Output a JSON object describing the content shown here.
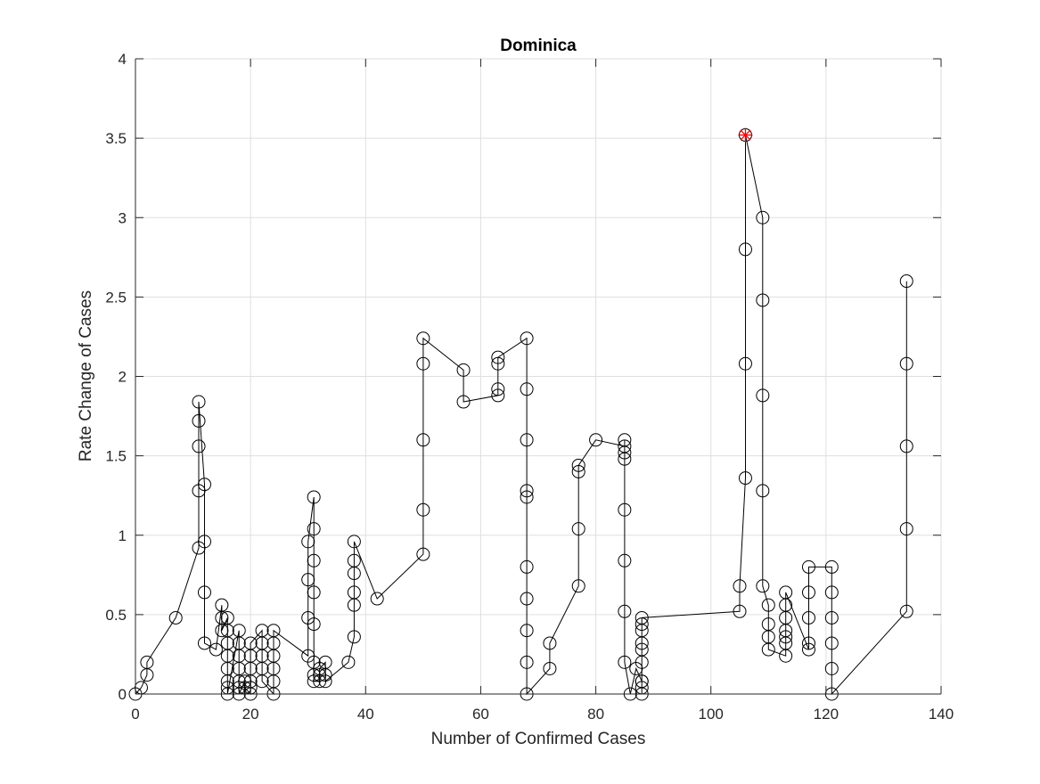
{
  "chart_data": {
    "type": "line",
    "title": "Dominica",
    "xlabel": "Number of Confirmed Cases",
    "ylabel": "Rate Change of Cases",
    "xlim": [
      0,
      140
    ],
    "ylim": [
      0,
      4
    ],
    "xticks": [
      0,
      20,
      40,
      60,
      80,
      100,
      120,
      140
    ],
    "yticks": [
      0,
      0.5,
      1,
      1.5,
      2,
      2.5,
      3,
      3.5,
      4
    ],
    "xtick_labels": [
      "0",
      "20",
      "40",
      "60",
      "80",
      "100",
      "120",
      "140"
    ],
    "ytick_labels": [
      "0",
      "0.5",
      "1",
      "1.5",
      "2",
      "2.5",
      "3",
      "3.5",
      "4"
    ],
    "grid": true,
    "marker": "circle",
    "line_color": "#000000",
    "highlight_color": "#ff0000",
    "series": [
      {
        "x": [
          0,
          1,
          2,
          2,
          7,
          11,
          11,
          11,
          11,
          11,
          12,
          12,
          12,
          12,
          14,
          15,
          15,
          15,
          16,
          16,
          16,
          16,
          16,
          16,
          16,
          16,
          18,
          18,
          18,
          18,
          18,
          18,
          18,
          19,
          19,
          20,
          20,
          20,
          20,
          20,
          20,
          22,
          22,
          22,
          22,
          22,
          24,
          24,
          24,
          24,
          24,
          24,
          30,
          30,
          30,
          30,
          31,
          31,
          31,
          31,
          31,
          31,
          31,
          31,
          32,
          32,
          32,
          33,
          33,
          33,
          37,
          38,
          38,
          38,
          38,
          38,
          38,
          42,
          50,
          50,
          50,
          50,
          50,
          57,
          57,
          63,
          63,
          63,
          63,
          68,
          68,
          68,
          68,
          68,
          68,
          68,
          68,
          68,
          68,
          72,
          72,
          77,
          77,
          77,
          77,
          80,
          85,
          85,
          85,
          85,
          85,
          85,
          85,
          85,
          86,
          87,
          88,
          88,
          88,
          88,
          88,
          88,
          88,
          88,
          88,
          88,
          105,
          105,
          106,
          106,
          106,
          106,
          109,
          109,
          109,
          109,
          109,
          110,
          110,
          110,
          110,
          113,
          113,
          113,
          113,
          113,
          113,
          113,
          117,
          117,
          117,
          117,
          117,
          121,
          121,
          121,
          121,
          121,
          121,
          134,
          134,
          134,
          134,
          134
        ],
        "y": [
          0,
          0.04,
          0.12,
          0.2,
          0.48,
          0.92,
          1.28,
          1.56,
          1.72,
          1.84,
          1.32,
          0.96,
          0.64,
          0.32,
          0.28,
          0.56,
          0.48,
          0.4,
          0.48,
          0.4,
          0.32,
          0.24,
          0.16,
          0.08,
          0.04,
          0,
          0.4,
          0.32,
          0.24,
          0.16,
          0.08,
          0.04,
          0,
          0.08,
          0.04,
          0,
          0.04,
          0.08,
          0.16,
          0.24,
          0.32,
          0.4,
          0.32,
          0.24,
          0.16,
          0.08,
          0,
          0.08,
          0.16,
          0.24,
          0.32,
          0.4,
          0.24,
          0.48,
          0.72,
          0.96,
          1.24,
          1.04,
          0.84,
          0.64,
          0.44,
          0.2,
          0.12,
          0.08,
          0.08,
          0.12,
          0.16,
          0.2,
          0.12,
          0.08,
          0.2,
          0.36,
          0.56,
          0.64,
          0.76,
          0.84,
          0.96,
          0.6,
          0.88,
          1.16,
          1.6,
          2.08,
          2.24,
          2.04,
          1.84,
          1.88,
          1.92,
          2.08,
          2.12,
          2.24,
          1.92,
          1.6,
          1.28,
          1.24,
          0.8,
          0.6,
          0.4,
          0.2,
          0,
          0.16,
          0.32,
          0.68,
          1.04,
          1.4,
          1.44,
          1.6,
          1.56,
          1.6,
          1.52,
          1.48,
          1.16,
          0.84,
          0.52,
          0.2,
          0,
          0.16,
          0.08,
          0.04,
          0,
          0.08,
          0.2,
          0.28,
          0.32,
          0.4,
          0.44,
          0.48,
          0.52,
          0.68,
          1.36,
          2.08,
          2.8,
          3.52,
          3,
          2.48,
          1.88,
          1.28,
          0.68,
          0.56,
          0.44,
          0.36,
          0.28,
          0.24,
          0.32,
          0.36,
          0.4,
          0.48,
          0.56,
          0.64,
          0.28,
          0.32,
          0.48,
          0.64,
          0.8,
          0.8,
          0.64,
          0.48,
          0.32,
          0.16,
          0,
          0.52,
          1.04,
          1.56,
          2.08,
          2.6
        ]
      }
    ],
    "highlight_point": {
      "x": 106,
      "y": 3.52
    }
  }
}
